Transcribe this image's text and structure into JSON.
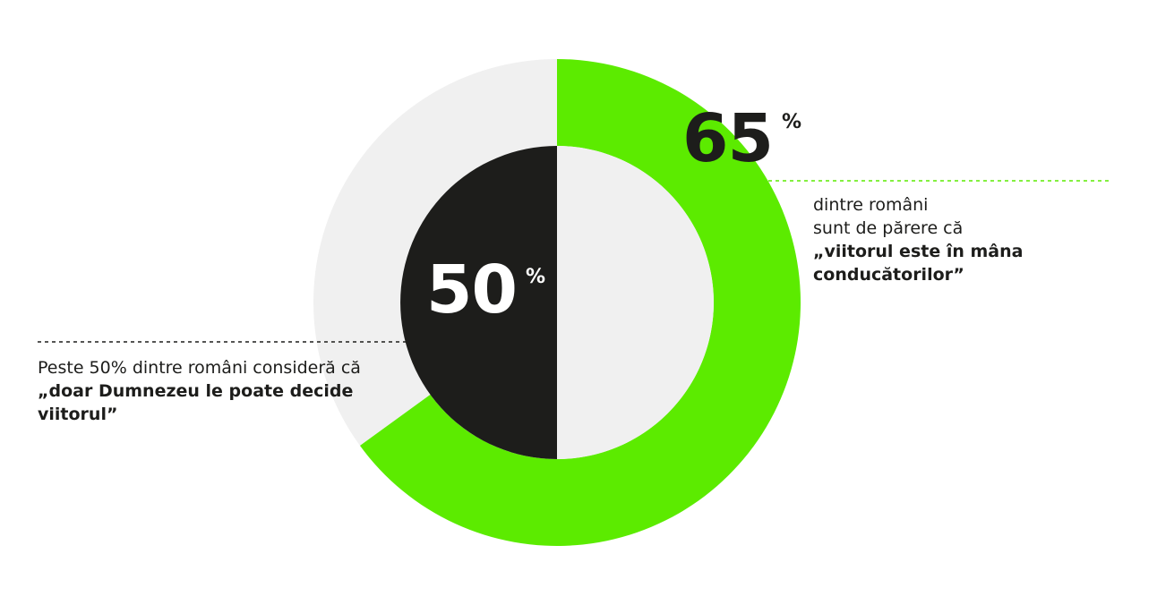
{
  "chart_data": [
    {
      "type": "pie",
      "ring": "outer",
      "values": [
        65,
        35
      ],
      "segment_colors": [
        "#5ceb00",
        "#f0f0f0"
      ],
      "label": {
        "value": "65",
        "unit": "%"
      },
      "annotation": {
        "lines": [
          "dintre români",
          "sunt de părere că"
        ],
        "bold_lines": [
          "„viitorul este în mâna",
          "conducătorilor”"
        ]
      }
    },
    {
      "type": "pie",
      "ring": "inner",
      "values": [
        50,
        50
      ],
      "segment_colors": [
        "#1d1d1b",
        "#f0f0f0"
      ],
      "label": {
        "value": "50",
        "unit": "%"
      },
      "annotation": {
        "lines": [
          "Peste 50% dintre români consideră că"
        ],
        "bold_lines": [
          "„doar Dumnezeu le poate decide",
          "viitorul”"
        ]
      }
    }
  ],
  "colors": {
    "accent": "#5ceb00",
    "dark": "#1d1d1b",
    "track": "#f0f0f0",
    "white": "#ffffff"
  }
}
